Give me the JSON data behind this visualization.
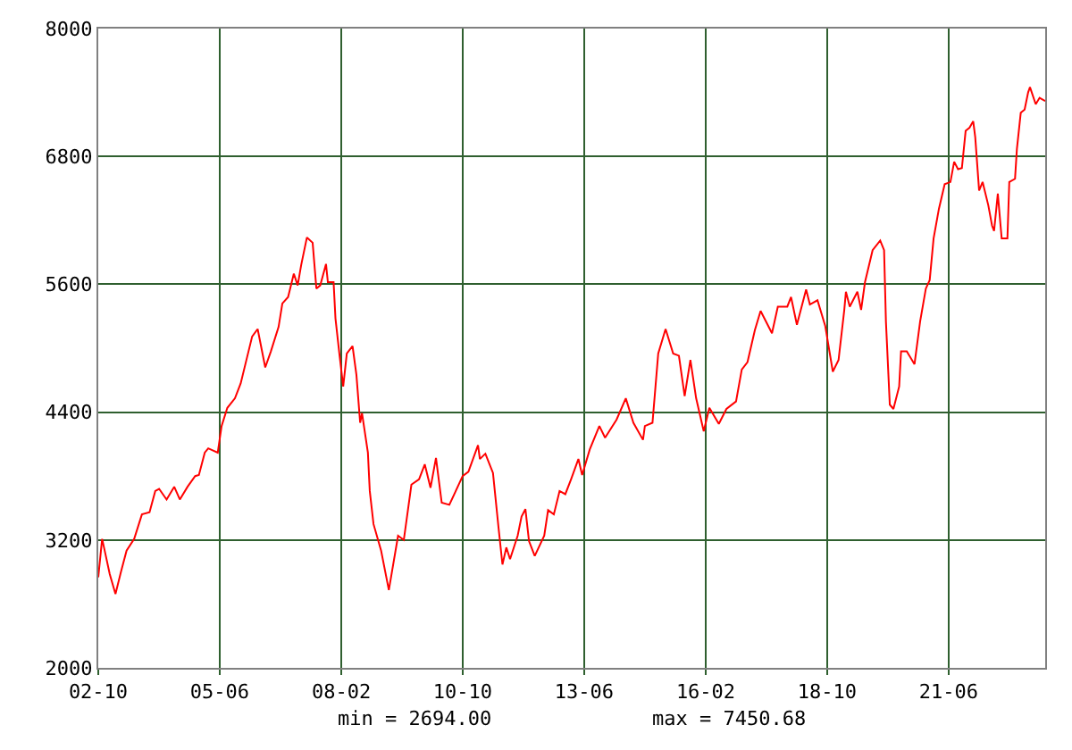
{
  "chart_data": {
    "type": "line",
    "x": [
      "2002-10-01",
      "2002-11-01",
      "2002-11-16",
      "2003-01-01",
      "2003-02-16",
      "2003-04-01",
      "2003-05-16",
      "2003-07-16",
      "2003-09-16",
      "2003-11-16",
      "2004-01-01",
      "2004-02-01",
      "2004-04-01",
      "2004-06-01",
      "2004-07-16",
      "2004-09-16",
      "2004-11-16",
      "2004-12-16",
      "2005-02-01",
      "2005-03-01",
      "2005-05-16",
      "2005-06-16",
      "2005-08-01",
      "2005-10-01",
      "2005-11-16",
      "2006-01-01",
      "2006-02-16",
      "2006-04-01",
      "2006-06-01",
      "2006-07-16",
      "2006-09-16",
      "2006-10-16",
      "2006-12-01",
      "2007-01-16",
      "2007-02-16",
      "2007-03-16",
      "2007-05-01",
      "2007-06-16",
      "2007-07-16",
      "2007-08-16",
      "2007-10-01",
      "2007-10-16",
      "2007-12-01",
      "2007-12-16",
      "2008-01-16",
      "2008-02-16",
      "2008-03-16",
      "2008-05-01",
      "2008-06-01",
      "2008-07-01",
      "2008-07-16",
      "2008-09-01",
      "2008-09-16",
      "2008-10-16",
      "2008-12-16",
      "2009-02-16",
      "2009-05-01",
      "2009-06-16",
      "2009-08-16",
      "2009-10-16",
      "2009-12-01",
      "2010-01-16",
      "2010-03-01",
      "2010-04-16",
      "2010-06-16",
      "2010-10-01",
      "2010-11-16",
      "2011-02-01",
      "2011-02-16",
      "2011-04-01",
      "2011-06-01",
      "2011-07-16",
      "2011-08-16",
      "2011-09-16",
      "2011-10-16",
      "2011-12-16",
      "2012-01-16",
      "2012-02-16",
      "2012-03-16",
      "2012-05-01",
      "2012-07-16",
      "2012-08-16",
      "2012-10-01",
      "2012-11-16",
      "2013-01-01",
      "2013-02-16",
      "2013-04-16",
      "2013-05-16",
      "2013-07-16",
      "2013-10-01",
      "2013-11-16",
      "2014-02-16",
      "2014-05-01",
      "2014-07-01",
      "2014-09-16",
      "2014-10-01",
      "2014-12-01",
      "2015-01-16",
      "2015-03-16",
      "2015-05-16",
      "2015-07-01",
      "2015-08-16",
      "2015-10-01",
      "2015-11-16",
      "2016-01-16",
      "2016-03-01",
      "2016-05-16",
      "2016-07-16",
      "2016-10-01",
      "2016-11-16",
      "2017-01-01",
      "2017-03-01",
      "2017-04-16",
      "2017-07-16",
      "2017-09-01",
      "2017-11-16",
      "2017-12-16",
      "2018-02-01",
      "2018-04-16",
      "2018-05-16",
      "2018-07-16",
      "2018-09-16",
      "2018-11-16",
      "2019-01-01",
      "2019-02-16",
      "2019-03-01",
      "2019-04-01",
      "2019-06-01",
      "2019-07-01",
      "2019-08-01",
      "2019-10-01",
      "2019-12-01",
      "2020-01-01",
      "2020-01-16",
      "2020-02-16",
      "2020-03-16",
      "2020-05-01",
      "2020-05-16",
      "2020-07-01",
      "2020-09-01",
      "2020-10-16",
      "2020-12-01",
      "2021-01-01",
      "2021-02-01",
      "2021-03-16",
      "2021-05-01",
      "2021-06-16",
      "2021-07-16",
      "2021-08-16",
      "2021-09-16",
      "2021-10-16",
      "2021-11-16",
      "2021-12-16",
      "2022-01-01",
      "2022-02-01",
      "2022-03-01",
      "2022-04-16",
      "2022-05-16",
      "2022-06-01",
      "2022-07-01",
      "2022-08-01",
      "2022-09-16",
      "2022-10-01",
      "2022-11-16",
      "2022-12-01",
      "2023-01-01",
      "2023-02-01",
      "2023-03-01",
      "2023-03-16",
      "2023-05-01",
      "2023-06-01",
      "2023-07-16"
    ],
    "series": [
      {
        "color": "#ff0000",
        "values": [
          2850,
          3210,
          3130,
          2880,
          2694,
          2900,
          3100,
          3210,
          3440,
          3460,
          3660,
          3680,
          3580,
          3700,
          3580,
          3700,
          3800,
          3810,
          4020,
          4060,
          4020,
          4270,
          4440,
          4530,
          4670,
          4890,
          5110,
          5180,
          4820,
          4970,
          5200,
          5420,
          5480,
          5700,
          5590,
          5780,
          6040,
          5990,
          5560,
          5590,
          5790,
          5620,
          5620,
          5280,
          4950,
          4640,
          4950,
          5020,
          4750,
          4300,
          4390,
          4020,
          3660,
          3350,
          3100,
          2730,
          3240,
          3200,
          3720,
          3770,
          3910,
          3690,
          3970,
          3550,
          3530,
          3800,
          3840,
          4090,
          3960,
          4010,
          3830,
          3310,
          2970,
          3130,
          3020,
          3240,
          3420,
          3490,
          3190,
          3050,
          3240,
          3480,
          3440,
          3660,
          3630,
          3770,
          3960,
          3810,
          4050,
          4270,
          4160,
          4330,
          4530,
          4300,
          4140,
          4270,
          4300,
          4950,
          5180,
          4950,
          4930,
          4550,
          4890,
          4530,
          4220,
          4440,
          4290,
          4430,
          4500,
          4800,
          4870,
          5170,
          5350,
          5140,
          5390,
          5390,
          5480,
          5220,
          5550,
          5410,
          5450,
          5210,
          4780,
          4890,
          5360,
          5530,
          5390,
          5530,
          5360,
          5620,
          5920,
          6010,
          5920,
          5250,
          4470,
          4430,
          4640,
          4970,
          4970,
          4850,
          5250,
          5560,
          5640,
          6030,
          6310,
          6540,
          6560,
          6750,
          6680,
          6690,
          7040,
          7070,
          7130,
          6980,
          6480,
          6560,
          6340,
          6150,
          6100,
          6450,
          6030,
          6030,
          6560,
          6590,
          6870,
          7210,
          7240,
          7400,
          7450.68,
          7290,
          7350,
          7320
        ]
      }
    ],
    "xlim": [
      "2002-10-01",
      "2023-07-16"
    ],
    "xticks": [
      {
        "value": "2002-10",
        "label": "02-10"
      },
      {
        "value": "2005-06",
        "label": "05-06"
      },
      {
        "value": "2008-02",
        "label": "08-02"
      },
      {
        "value": "2010-10",
        "label": "10-10"
      },
      {
        "value": "2013-06",
        "label": "13-06"
      },
      {
        "value": "2016-02",
        "label": "16-02"
      },
      {
        "value": "2018-10",
        "label": "18-10"
      },
      {
        "value": "2021-06",
        "label": "21-06"
      }
    ],
    "ylim": [
      2000,
      8000
    ],
    "yticks": [
      2000,
      3200,
      4400,
      5600,
      6800,
      8000
    ],
    "grid": true,
    "marker": "none",
    "line_style": "solid",
    "annotations": [
      "min = 2694.00",
      "max = 7450.68"
    ]
  }
}
